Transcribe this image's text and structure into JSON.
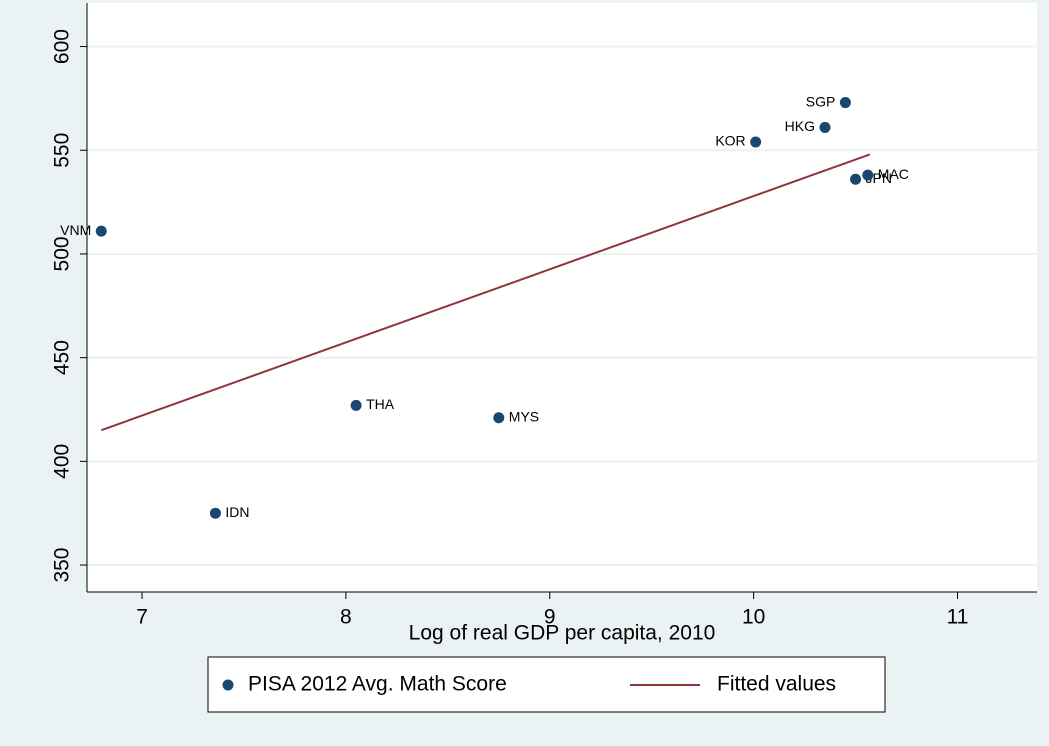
{
  "chart_data": {
    "type": "scatter",
    "xlabel": "Log of real GDP per capita, 2010",
    "xlim": [
      6.73,
      11.39
    ],
    "ylim": [
      337,
      621
    ],
    "xticks": [
      7,
      8,
      9,
      10,
      11
    ],
    "yticks": [
      350,
      400,
      450,
      500,
      550,
      600
    ],
    "grid": true,
    "legend": "bottom",
    "series": [
      {
        "name": "PISA 2012 Avg. Math Score",
        "type": "scatter",
        "color": "#1a476f",
        "labels": [
          "VNM",
          "IDN",
          "THA",
          "MYS",
          "KOR",
          "HKG",
          "SGP",
          "JPN",
          "MAC"
        ],
        "x": [
          6.8,
          7.36,
          8.05,
          8.75,
          10.01,
          10.35,
          10.45,
          10.5,
          10.56
        ],
        "values": [
          511,
          375,
          427,
          421,
          554,
          561,
          573,
          536,
          538
        ]
      },
      {
        "name": "Fitted values",
        "type": "line",
        "color": "#90353b",
        "x": [
          6.8,
          10.57
        ],
        "values": [
          415,
          548
        ]
      }
    ]
  }
}
